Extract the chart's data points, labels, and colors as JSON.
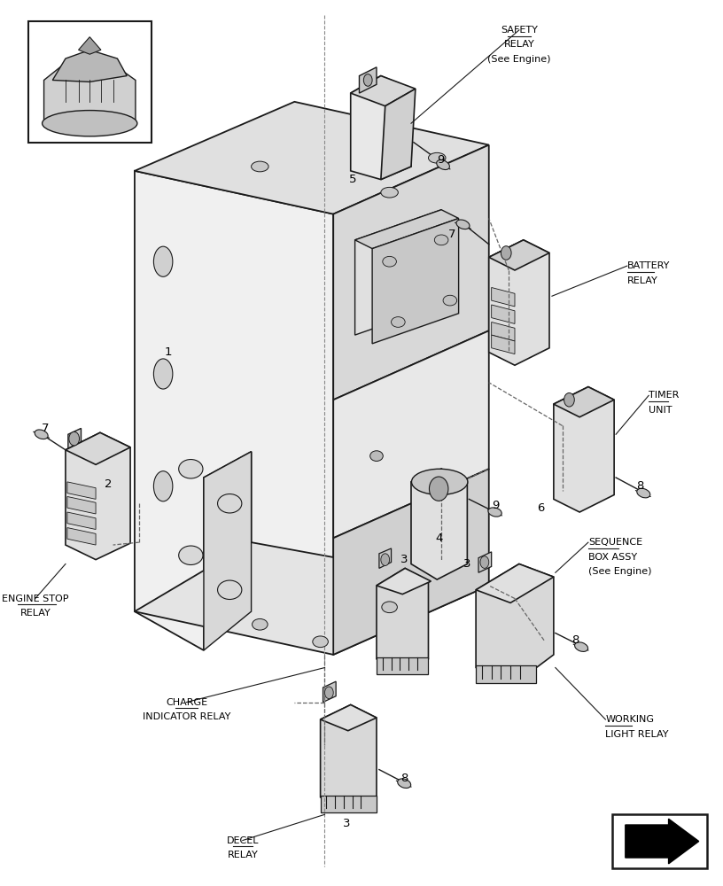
{
  "bg_color": "#ffffff",
  "line_color": "#1a1a1a",
  "figsize": [
    8.16,
    10.0
  ],
  "dpi": 100,
  "labels": {
    "safety_relay": [
      "SAFETY",
      "RELAY",
      "(See Engine)"
    ],
    "battery_relay": [
      "BATTERY",
      "RELAY"
    ],
    "timer_unit": [
      "TIMER",
      "UNIT"
    ],
    "sequence_box": [
      "SEQUENCE",
      "BOX ASSY",
      "(See Engine)"
    ],
    "working_light_relay": [
      "WORKING",
      "LIGHT RELAY"
    ],
    "engine_stop_relay": [
      "ENGINE STOP",
      "RELAY"
    ],
    "charge_indicator_relay": [
      "CHARGE",
      "INDICATOR RELAY"
    ],
    "decel_relay": [
      "DECEL",
      "RELAY"
    ]
  }
}
